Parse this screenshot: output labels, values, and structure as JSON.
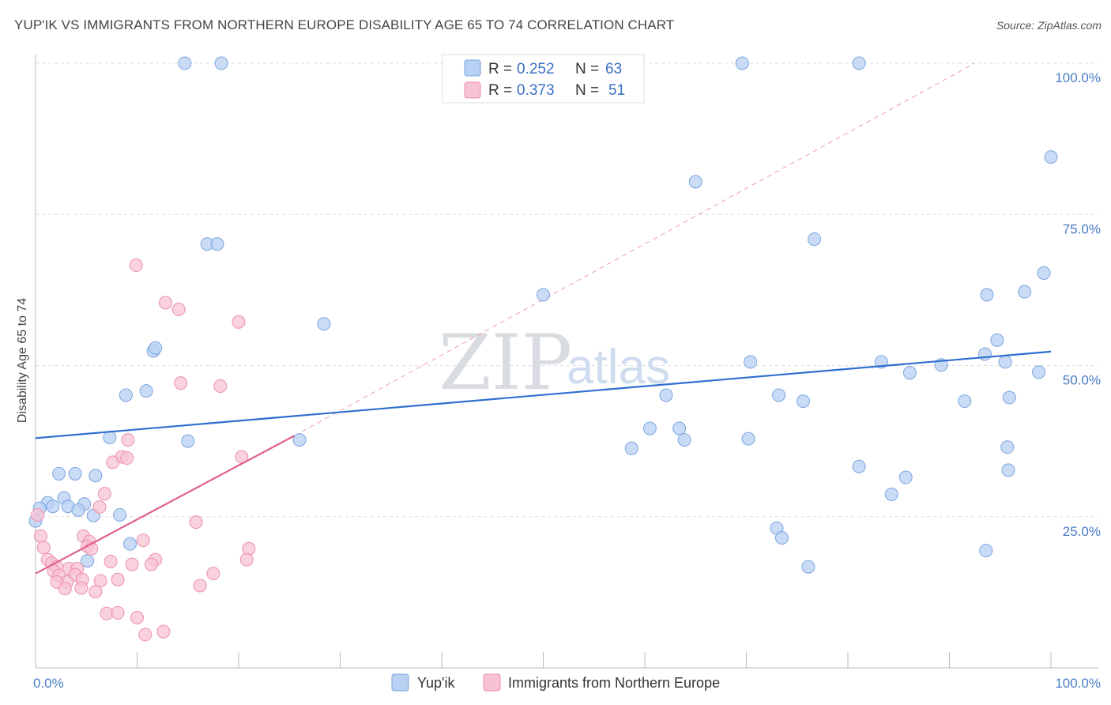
{
  "header": {
    "title": "YUP'IK VS IMMIGRANTS FROM NORTHERN EUROPE DISABILITY AGE 65 TO 74 CORRELATION CHART",
    "source": "Source: ZipAtlas.com"
  },
  "watermark": {
    "zip": "ZIP",
    "atlas": "atlas"
  },
  "colors": {
    "blue_fill": "#b8d0f2",
    "blue_stroke": "#7aa5e0",
    "blue_line": "#2f6fd0",
    "pink_fill": "#f7c3d3",
    "pink_stroke": "#ec8fad",
    "pink_line": "#e0618a",
    "grid": "#dddddd",
    "tick_label": "#4a7cc7"
  },
  "legend": {
    "rows": [
      {
        "r_label": "R =",
        "r_value": "0.252",
        "n_label": "N =",
        "n_value": "63"
      },
      {
        "r_label": "R =",
        "r_value": "0.373",
        "n_label": "N =",
        "n_value": "51"
      }
    ]
  },
  "bottom_legend": {
    "items": [
      {
        "label": "Yup'ik"
      },
      {
        "label": "Immigrants from Northern Europe"
      }
    ]
  },
  "chart_data": {
    "type": "scatter",
    "title": "YUP'IK VS IMMIGRANTS FROM NORTHERN EUROPE DISABILITY AGE 65 TO 74 CORRELATION CHART",
    "xlabel": "",
    "ylabel": "Disability Age 65 to 74",
    "xlim": [
      0,
      100
    ],
    "ylim": [
      0,
      100
    ],
    "x_tick_labels": [
      "0.0%",
      "100.0%"
    ],
    "y_ticks": [
      25,
      50,
      75,
      100
    ],
    "y_tick_labels": [
      "25.0%",
      "50.0%",
      "75.0%",
      "100.0%"
    ],
    "grid": true,
    "series": [
      {
        "name": "Yup'ik",
        "color": "#b8d0f2",
        "r": 0.252,
        "n": 63,
        "trend": {
          "x": [
            0,
            100
          ],
          "y": [
            38,
            52.3
          ]
        },
        "points": [
          [
            14.7,
            100
          ],
          [
            18.3,
            100
          ],
          [
            69.6,
            100
          ],
          [
            81.1,
            100
          ],
          [
            100,
            84.5
          ],
          [
            65,
            80.4
          ],
          [
            16.9,
            70.1
          ],
          [
            17.9,
            70.1
          ],
          [
            76.7,
            70.9
          ],
          [
            50,
            61.7
          ],
          [
            99.3,
            65.3
          ],
          [
            93.7,
            61.7
          ],
          [
            97.4,
            62.2
          ],
          [
            28.4,
            56.9
          ],
          [
            11.6,
            52.4
          ],
          [
            11.8,
            52.9
          ],
          [
            94.7,
            54.2
          ],
          [
            93.5,
            51.9
          ],
          [
            70.4,
            50.6
          ],
          [
            83.3,
            50.6
          ],
          [
            89.2,
            50.1
          ],
          [
            95.5,
            50.6
          ],
          [
            86.1,
            48.8
          ],
          [
            98.8,
            48.9
          ],
          [
            8.9,
            45.1
          ],
          [
            10.9,
            45.8
          ],
          [
            62.1,
            45.1
          ],
          [
            73.2,
            45.1
          ],
          [
            75.6,
            44.1
          ],
          [
            91.5,
            44.1
          ],
          [
            95.9,
            44.7
          ],
          [
            60.5,
            39.6
          ],
          [
            63.4,
            39.6
          ],
          [
            63.9,
            37.7
          ],
          [
            70.2,
            37.9
          ],
          [
            58.7,
            36.3
          ],
          [
            7.3,
            38.1
          ],
          [
            15,
            37.5
          ],
          [
            26,
            37.7
          ],
          [
            95.7,
            36.5
          ],
          [
            81.1,
            33.3
          ],
          [
            95.8,
            32.7
          ],
          [
            2.3,
            32.1
          ],
          [
            3.9,
            32.1
          ],
          [
            5.9,
            31.8
          ],
          [
            85.7,
            31.5
          ],
          [
            84.3,
            28.7
          ],
          [
            2.8,
            28.1
          ],
          [
            1.2,
            27.3
          ],
          [
            4.8,
            27.1
          ],
          [
            1.7,
            26.7
          ],
          [
            3.2,
            26.7
          ],
          [
            4.2,
            26.1
          ],
          [
            0.4,
            26.4
          ],
          [
            5.7,
            25.2
          ],
          [
            8.3,
            25.3
          ],
          [
            0,
            24.3
          ],
          [
            73,
            23.1
          ],
          [
            73.5,
            21.5
          ],
          [
            9.3,
            20.5
          ],
          [
            93.6,
            19.4
          ],
          [
            5.1,
            17.7
          ],
          [
            76.1,
            16.7
          ]
        ]
      },
      {
        "name": "Immigrants from Northern Europe",
        "color": "#f7c3d3",
        "r": 0.373,
        "n": 51,
        "trend": {
          "x": [
            0,
            25.5
          ],
          "y": [
            15.6,
            38.4
          ]
        },
        "points": [
          [
            9.9,
            66.6
          ],
          [
            12.8,
            60.4
          ],
          [
            14.1,
            59.3
          ],
          [
            20,
            57.2
          ],
          [
            14.3,
            47.1
          ],
          [
            18.2,
            46.6
          ],
          [
            9.1,
            37.7
          ],
          [
            20.3,
            34.9
          ],
          [
            8.5,
            34.9
          ],
          [
            9.0,
            34.7
          ],
          [
            7.6,
            34
          ],
          [
            6.8,
            28.8
          ],
          [
            6.3,
            26.6
          ],
          [
            0.2,
            25.3
          ],
          [
            15.8,
            24.1
          ],
          [
            0.5,
            21.8
          ],
          [
            4.7,
            21.8
          ],
          [
            10.6,
            21.1
          ],
          [
            5.3,
            20.9
          ],
          [
            5.1,
            20.1
          ],
          [
            0.8,
            19.9
          ],
          [
            5.5,
            19.7
          ],
          [
            21,
            19.7
          ],
          [
            11.8,
            17.9
          ],
          [
            1.2,
            17.9
          ],
          [
            20.8,
            17.9
          ],
          [
            7.4,
            17.6
          ],
          [
            9.5,
            17.1
          ],
          [
            1.6,
            17.3
          ],
          [
            11.4,
            17.1
          ],
          [
            2.1,
            16.7
          ],
          [
            3.3,
            16.4
          ],
          [
            4.1,
            16.4
          ],
          [
            17.5,
            15.6
          ],
          [
            1.8,
            16
          ],
          [
            3.9,
            15.4
          ],
          [
            2.3,
            15.3
          ],
          [
            4.6,
            14.6
          ],
          [
            8.1,
            14.6
          ],
          [
            6.4,
            14.4
          ],
          [
            3.1,
            14.2
          ],
          [
            2.1,
            14.2
          ],
          [
            16.2,
            13.6
          ],
          [
            4.5,
            13.2
          ],
          [
            2.9,
            13.1
          ],
          [
            5.9,
            12.6
          ],
          [
            7.0,
            9.0
          ],
          [
            8.1,
            9.1
          ],
          [
            10.0,
            8.3
          ],
          [
            12.6,
            6
          ],
          [
            10.8,
            5.5
          ]
        ]
      }
    ]
  },
  "axes": {
    "ylabel": "Disability Age 65 to 74"
  }
}
